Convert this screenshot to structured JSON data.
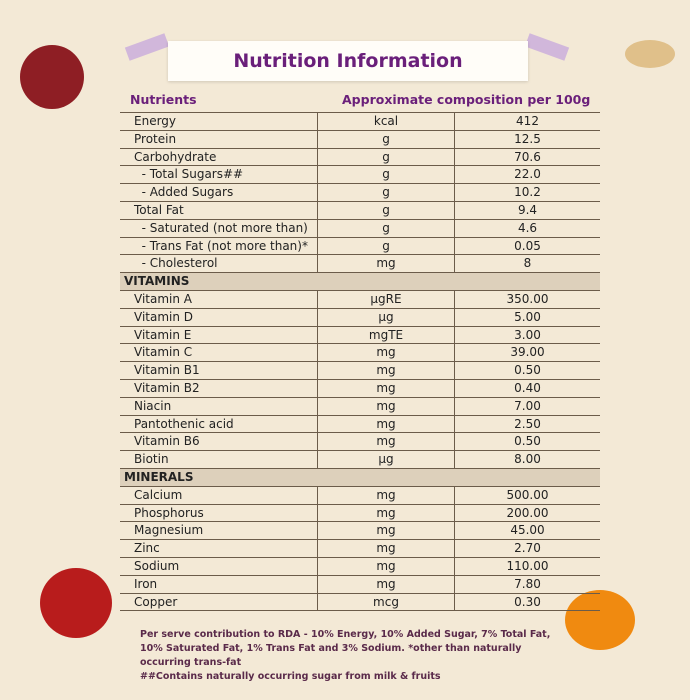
{
  "header": {
    "title": "Nutrition Information",
    "columns": [
      "Nutrients",
      "Approximate composition per 100g"
    ]
  },
  "table": {
    "rows": [
      [
        "Energy",
        "kcal",
        "412"
      ],
      [
        "Protein",
        "g",
        "12.5"
      ],
      [
        "Carbohydrate",
        "g",
        "70.6"
      ],
      [
        "  - Total Sugars##",
        "g",
        "22.0"
      ],
      [
        "  - Added Sugars",
        "g",
        "10.2"
      ],
      [
        "Total Fat",
        "g",
        "9.4"
      ],
      [
        "  - Saturated (not more than)",
        "g",
        "4.6"
      ],
      [
        "  - Trans Fat (not more than)*",
        "g",
        "0.05"
      ],
      [
        "  - Cholesterol",
        "mg",
        "8"
      ],
      [
        "VITAMINS"
      ],
      [
        "Vitamin A",
        "µgRE",
        "350.00"
      ],
      [
        "Vitamin D",
        "µg",
        "5.00"
      ],
      [
        "Vitamin E",
        "mgTE",
        "3.00"
      ],
      [
        "Vitamin C",
        "mg",
        "39.00"
      ],
      [
        "Vitamin B1",
        "mg",
        "0.50"
      ],
      [
        "Vitamin B2",
        "mg",
        "0.40"
      ],
      [
        "Niacin",
        "mg",
        "7.00"
      ],
      [
        "Pantothenic acid",
        "mg",
        "2.50"
      ],
      [
        "Vitamin B6",
        "mg",
        "0.50"
      ],
      [
        "Biotin",
        "µg",
        "8.00"
      ],
      [
        "MINERALS"
      ],
      [
        "Calcium",
        "mg",
        "500.00"
      ],
      [
        "Phosphorus",
        "mg",
        "200.00"
      ],
      [
        "Magnesium",
        "mg",
        "45.00"
      ],
      [
        "Zinc",
        "mg",
        "2.70"
      ],
      [
        "Sodium",
        "mg",
        "110.00"
      ],
      [
        "Iron",
        "mg",
        "7.80"
      ],
      [
        "Copper",
        "mcg",
        "0.30"
      ]
    ]
  },
  "footnotes": [
    "Per serve contribution to RDA - 10% Energy, 10% Added Sugar, 7% Total Fat, 10% Saturated Fat, 1% Trans Fat and 3% Sodium. *other than naturally occurring trans-fat",
    "##Contains naturally occurring sugar from milk & fruits"
  ]
}
